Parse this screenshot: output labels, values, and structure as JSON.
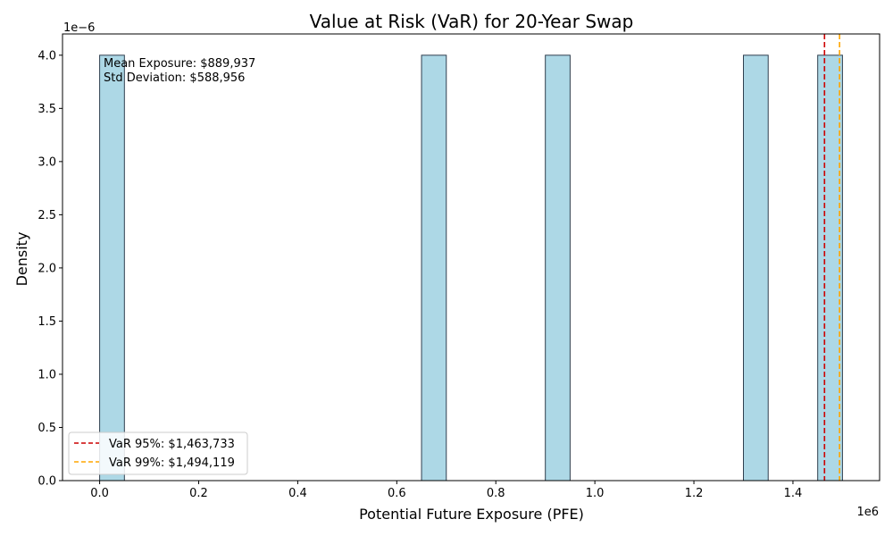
{
  "chart_data": {
    "type": "bar",
    "title": "Value at Risk (VaR) for 20-Year Swap",
    "xlabel": "Potential Future Exposure (PFE)",
    "ylabel": "Density",
    "x_offset_label": "1e6",
    "y_offset_label": "1e−6",
    "xlim": [
      -0.075,
      1.575
    ],
    "ylim": [
      0,
      4.2
    ],
    "x_ticks": [
      0.0,
      0.2,
      0.4,
      0.6,
      0.8,
      1.0,
      1.2,
      1.4
    ],
    "x_tick_labels": [
      "0.0",
      "0.2",
      "0.4",
      "0.6",
      "0.8",
      "1.0",
      "1.2",
      "1.4"
    ],
    "y_ticks": [
      0.0,
      0.5,
      1.0,
      1.5,
      2.0,
      2.5,
      3.0,
      3.5,
      4.0
    ],
    "y_tick_labels": [
      "0.0",
      "0.5",
      "1.0",
      "1.5",
      "2.0",
      "2.5",
      "3.0",
      "3.5",
      "4.0"
    ],
    "bins": [
      {
        "start": 0.0,
        "end": 0.05,
        "density": 4.0
      },
      {
        "start": 0.65,
        "end": 0.7,
        "density": 4.0
      },
      {
        "start": 0.9,
        "end": 0.95,
        "density": 4.0
      },
      {
        "start": 1.3,
        "end": 1.35,
        "density": 4.0
      },
      {
        "start": 1.45,
        "end": 1.5,
        "density": 4.0
      }
    ],
    "bar_color": "#add8e6",
    "bar_edge_color": "#2f3f4f",
    "var_lines": [
      {
        "label": "VaR 95%: $1,463,733",
        "x": 1.463733,
        "color": "#cc0000"
      },
      {
        "label": "VaR 99%: $1,494,119",
        "x": 1.494119,
        "color": "#ffa500"
      }
    ],
    "annotations": [
      "Mean Exposure: $889,937",
      "Std Deviation: $588,956"
    ],
    "legend_position": "lower-left",
    "grid": false
  }
}
